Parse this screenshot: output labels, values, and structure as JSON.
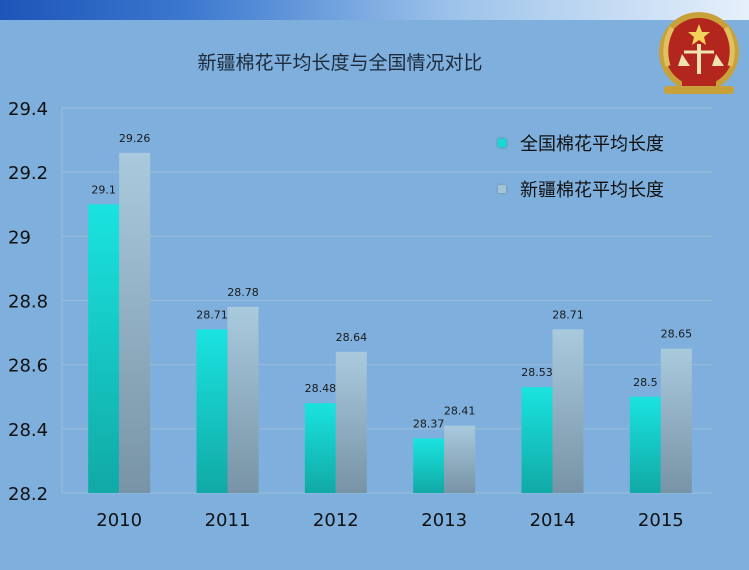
{
  "title": "新疆棉花平均长度与全国情况对比",
  "colors": {
    "series1": "#19d9d6",
    "series1_dark": "#13a39f",
    "series2": "#a4c4d6",
    "series2_dark": "#7e98ab"
  },
  "chart_data": {
    "type": "bar",
    "title": "新疆棉花平均长度与全国情况对比",
    "categories": [
      "2010",
      "2011",
      "2012",
      "2013",
      "2014",
      "2015"
    ],
    "series": [
      {
        "name": "全国棉花平均长度",
        "values": [
          29.1,
          28.71,
          28.48,
          28.37,
          28.53,
          28.5
        ]
      },
      {
        "name": "新疆棉花平均长度",
        "values": [
          29.26,
          28.78,
          28.64,
          28.41,
          28.71,
          28.65
        ]
      }
    ],
    "value_labels": [
      [
        "29.1",
        "28.71",
        "28.48",
        "28.37",
        "28.53",
        "28.5"
      ],
      [
        "29.26",
        "28.78",
        "28.64",
        "28.41",
        "28.71",
        "28.65"
      ]
    ],
    "y_ticks": [
      "28.2",
      "28.4",
      "28.6",
      "28.8",
      "29",
      "29.2",
      "29.4"
    ],
    "ylim": [
      28.2,
      29.4
    ],
    "grid": true,
    "legend_position": "top-right"
  },
  "emblem_icon": "national-emblem-icon"
}
